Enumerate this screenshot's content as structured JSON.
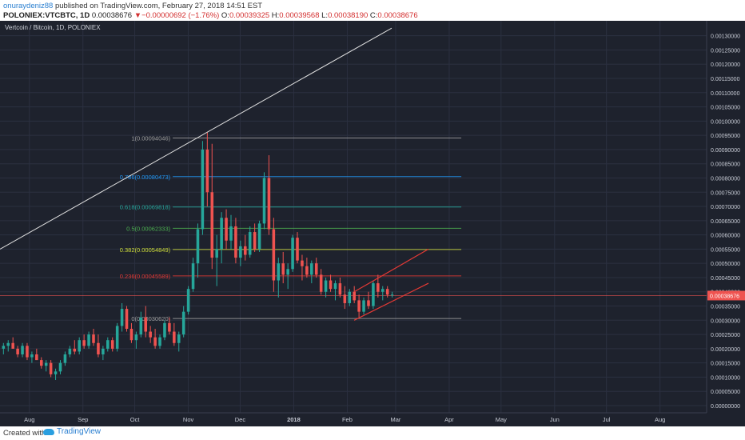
{
  "header": {
    "author": "onuraydeniz88",
    "published": "published on TradingView.com, February 27, 2018 14:51 EST",
    "symbol": "POLONIEX:VTCBTC, 1D",
    "last": "0.00038676",
    "change": "▼−0.00000692 (−1.76%)",
    "o_label": "O:",
    "o_value": "0.00039325",
    "h_label": "H:",
    "h_value": "0.00039568",
    "l_label": "L:",
    "l_value": "0.00038190",
    "c_label": "C:",
    "c_value": "0.00038676"
  },
  "footer": {
    "created_with": "Created with",
    "brand": "TradingView"
  },
  "colors": {
    "background": "#1e222d",
    "grid": "#2b3040",
    "axis_text": "#c8ccd6",
    "up_candle": "#26a69a",
    "down_candle": "#ef5350",
    "price_tag": "#ef5350",
    "trendline": "#e0e0e0",
    "channel": "#e53935"
  },
  "chart_data": {
    "type": "candlestick",
    "title": "Vertcoin / Bitcoin, 1D, POLONIEX",
    "x_tick_labels": [
      "Aug",
      "Sep",
      "Oct",
      "Nov",
      "Dec",
      "2018",
      "Feb",
      "Mar",
      "Apr",
      "May",
      "Jun",
      "Jul",
      "Aug"
    ],
    "ylim": [
      0.0,
      0.00133
    ],
    "y_ticks": [
      "0.00130000",
      "0.00125000",
      "0.00120000",
      "0.00115000",
      "0.00110000",
      "0.00105000",
      "0.00100000",
      "0.00095000",
      "0.00090000",
      "0.00085000",
      "0.00080000",
      "0.00075000",
      "0.00070000",
      "0.00065000",
      "0.00060000",
      "0.00055000",
      "0.00050000",
      "0.00045000",
      "0.00040000",
      "0.00035000",
      "0.00030000",
      "0.00025000",
      "0.00020000",
      "0.00015000",
      "0.00010000",
      "0.00005000",
      "0.00000000"
    ],
    "last_price": 0.00038676,
    "last_price_label": "0.00038676",
    "fib_levels": [
      {
        "ratio": 1,
        "price": 0.00094046,
        "label": "1(0.00094046)",
        "color": "#9e9e9e"
      },
      {
        "ratio": 0.786,
        "price": 0.00080473,
        "label": "0.786(0.00080473)",
        "color": "#2196f3"
      },
      {
        "ratio": 0.618,
        "price": 0.00069818,
        "label": "0.618(0.00069818)",
        "color": "#26a69a"
      },
      {
        "ratio": 0.5,
        "price": 0.00062333,
        "label": "0.5(0.00062333)",
        "color": "#4caf50"
      },
      {
        "ratio": 0.382,
        "price": 0.00054849,
        "label": "0.382(0.00054849)",
        "color": "#cddc39"
      },
      {
        "ratio": 0.236,
        "price": 0.00045589,
        "label": "0.236(0.00045589)",
        "color": "#e53935"
      },
      {
        "ratio": 0,
        "price": 0.0003062,
        "label": "0(0.00030620)",
        "color": "#9e9e9e"
      }
    ],
    "trendline": {
      "from": {
        "x": "2017-07-15",
        "y": 0.00055
      },
      "to": {
        "x": "2017-10-31",
        "y": 0.00092
      }
    },
    "channel": {
      "upper": {
        "from": {
          "x": "2018-02-05",
          "y": 0.0004
        },
        "to": {
          "x": "2018-03-20",
          "y": 0.00055
        }
      },
      "lower": {
        "from": {
          "x": "2018-02-05",
          "y": 0.0003
        },
        "to": {
          "x": "2018-03-20",
          "y": 0.00043
        }
      }
    },
    "candles": [
      [
        0.0002,
        0.00022,
        0.00018,
        0.00021
      ],
      [
        0.00021,
        0.00023,
        0.00019,
        0.00022
      ],
      [
        0.00022,
        0.00024,
        0.0002,
        0.0002
      ],
      [
        0.0002,
        0.00021,
        0.00017,
        0.00018
      ],
      [
        0.00018,
        0.00022,
        0.00017,
        0.00021
      ],
      [
        0.00021,
        0.00022,
        0.00016,
        0.00017
      ],
      [
        0.00017,
        0.00019,
        0.00015,
        0.00018
      ],
      [
        0.00018,
        0.0002,
        0.00016,
        0.00016
      ],
      [
        0.00016,
        0.00017,
        0.00013,
        0.00014
      ],
      [
        0.00014,
        0.00016,
        0.00012,
        0.00015
      ],
      [
        0.00015,
        0.00016,
        0.0001,
        0.00011
      ],
      [
        0.00011,
        0.00013,
        9e-05,
        0.00012
      ],
      [
        0.00012,
        0.00016,
        0.00011,
        0.00015
      ],
      [
        0.00015,
        0.00019,
        0.00014,
        0.00018
      ],
      [
        0.00018,
        0.00021,
        0.00017,
        0.0002
      ],
      [
        0.0002,
        0.00023,
        0.00018,
        0.00019
      ],
      [
        0.00019,
        0.00024,
        0.00018,
        0.00023
      ],
      [
        0.00023,
        0.00025,
        0.0002,
        0.00021
      ],
      [
        0.00021,
        0.00026,
        0.0002,
        0.00025
      ],
      [
        0.00025,
        0.00027,
        0.00021,
        0.00022
      ],
      [
        0.00022,
        0.00025,
        0.00017,
        0.00018
      ],
      [
        0.00018,
        0.00021,
        0.00016,
        0.0002
      ],
      [
        0.0002,
        0.00024,
        0.00019,
        0.00023
      ],
      [
        0.00023,
        0.00024,
        0.00019,
        0.0002
      ],
      [
        0.0002,
        0.00029,
        0.00019,
        0.00028
      ],
      [
        0.00028,
        0.00036,
        0.00026,
        0.00034
      ],
      [
        0.00034,
        0.00035,
        0.00026,
        0.00027
      ],
      [
        0.00027,
        0.00029,
        0.00022,
        0.00023
      ],
      [
        0.00023,
        0.00026,
        0.0002,
        0.00025
      ],
      [
        0.00025,
        0.00033,
        0.00024,
        0.00031
      ],
      [
        0.00031,
        0.00035,
        0.00024,
        0.00026
      ],
      [
        0.00026,
        0.00028,
        0.00022,
        0.00024
      ],
      [
        0.00024,
        0.00027,
        0.0002,
        0.00021
      ],
      [
        0.00021,
        0.00025,
        0.0002,
        0.00024
      ],
      [
        0.00024,
        0.0003,
        0.00023,
        0.00029
      ],
      [
        0.00029,
        0.00031,
        0.00025,
        0.00026
      ],
      [
        0.00026,
        0.00029,
        0.00021,
        0.00022
      ],
      [
        0.00022,
        0.00026,
        0.00019,
        0.00025
      ],
      [
        0.00025,
        0.00035,
        0.00024,
        0.00033
      ],
      [
        0.00033,
        0.00042,
        0.00032,
        0.00041
      ],
      [
        0.00041,
        0.00052,
        0.0004,
        0.0005
      ],
      [
        0.0005,
        0.00064,
        0.00045,
        0.00062
      ],
      [
        0.00062,
        0.00093,
        0.0006,
        0.0009
      ],
      [
        0.0009,
        0.00096,
        0.0007,
        0.00075
      ],
      [
        0.00075,
        0.00092,
        0.00048,
        0.00052
      ],
      [
        0.00052,
        0.0006,
        0.00042,
        0.00055
      ],
      [
        0.00055,
        0.00068,
        0.0005,
        0.00066
      ],
      [
        0.00066,
        0.00069,
        0.00055,
        0.00058
      ],
      [
        0.00058,
        0.00067,
        0.00055,
        0.00063
      ],
      [
        0.00063,
        0.00066,
        0.0005,
        0.00052
      ],
      [
        0.00052,
        0.00058,
        0.00049,
        0.00056
      ],
      [
        0.00056,
        0.0006,
        0.00051,
        0.00053
      ],
      [
        0.00053,
        0.00063,
        0.00052,
        0.00061
      ],
      [
        0.00061,
        0.00064,
        0.00054,
        0.00055
      ],
      [
        0.00055,
        0.00065,
        0.00054,
        0.00064
      ],
      [
        0.00064,
        0.00082,
        0.00062,
        0.0008
      ],
      [
        0.0008,
        0.00088,
        0.0006,
        0.00062
      ],
      [
        0.00062,
        0.00066,
        0.0004,
        0.00044
      ],
      [
        0.00044,
        0.00052,
        0.00038,
        0.0005
      ],
      [
        0.0005,
        0.00054,
        0.00043,
        0.00046
      ],
      [
        0.00046,
        0.0005,
        0.00041,
        0.00048
      ],
      [
        0.00048,
        0.0006,
        0.00047,
        0.00059
      ],
      [
        0.00059,
        0.00061,
        0.0005,
        0.00051
      ],
      [
        0.00051,
        0.00053,
        0.00044,
        0.00049
      ],
      [
        0.00049,
        0.00052,
        0.00045,
        0.00046
      ],
      [
        0.00046,
        0.00051,
        0.00043,
        0.0005
      ],
      [
        0.0005,
        0.00052,
        0.00045,
        0.00046
      ],
      [
        0.00046,
        0.00048,
        0.00039,
        0.0004
      ],
      [
        0.0004,
        0.00045,
        0.00038,
        0.00044
      ],
      [
        0.00044,
        0.00046,
        0.0004,
        0.00041
      ],
      [
        0.00041,
        0.00044,
        0.00037,
        0.00043
      ],
      [
        0.00043,
        0.00045,
        0.00038,
        0.00039
      ],
      [
        0.00039,
        0.00042,
        0.00034,
        0.00036
      ],
      [
        0.00036,
        0.00041,
        0.00035,
        0.0004
      ],
      [
        0.0004,
        0.00042,
        0.00036,
        0.00037
      ],
      [
        0.00037,
        0.00039,
        0.00031,
        0.00033
      ],
      [
        0.00033,
        0.00038,
        0.00032,
        0.00037
      ],
      [
        0.00037,
        0.0004,
        0.00034,
        0.00035
      ],
      [
        0.00035,
        0.00044,
        0.00034,
        0.00043
      ],
      [
        0.00043,
        0.00046,
        0.00038,
        0.0004
      ],
      [
        0.0004,
        0.00042,
        0.00037,
        0.00041
      ],
      [
        0.00041,
        0.00042,
        0.00038,
        0.00039
      ],
      [
        0.00039,
        0.0004,
        0.00038,
        0.00039
      ]
    ]
  }
}
